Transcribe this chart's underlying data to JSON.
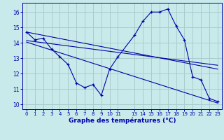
{
  "title": "",
  "xlabel": "Graphe des températures (°C)",
  "bg_color": "#c8eaea",
  "line_color": "#0000aa",
  "grid_color": "#aacccc",
  "ylim": [
    9.7,
    16.6
  ],
  "xlim": [
    -0.5,
    23.5
  ],
  "yticks": [
    10,
    11,
    12,
    13,
    14,
    15,
    16
  ],
  "xticks": [
    0,
    1,
    2,
    3,
    4,
    5,
    6,
    7,
    8,
    9,
    10,
    11,
    13,
    14,
    15,
    16,
    17,
    18,
    19,
    20,
    21,
    22,
    23
  ],
  "xtick_labels": [
    "0",
    "1",
    "2",
    "3",
    "4",
    "5",
    "6",
    "7",
    "8",
    "9",
    "10",
    "11",
    "13",
    "14",
    "15",
    "16",
    "17",
    "18",
    "19",
    "20",
    "21",
    "22",
    "23"
  ],
  "temp_x": [
    0,
    1,
    2,
    3,
    4,
    5,
    6,
    7,
    8,
    9,
    10,
    11,
    13,
    14,
    15,
    16,
    17,
    18,
    19,
    20,
    21,
    22,
    23
  ],
  "temp_y": [
    14.7,
    14.2,
    14.3,
    13.6,
    13.1,
    12.6,
    11.4,
    11.1,
    11.3,
    10.6,
    12.3,
    13.1,
    14.5,
    15.4,
    16.0,
    16.0,
    16.2,
    15.1,
    14.2,
    11.8,
    11.6,
    10.4,
    10.2
  ],
  "trend1_x": [
    0,
    23
  ],
  "trend1_y": [
    14.7,
    12.3
  ],
  "trend2_x": [
    0,
    23
  ],
  "trend2_y": [
    14.15,
    12.55
  ],
  "trend3_x": [
    0,
    23
  ],
  "trend3_y": [
    14.05,
    10.1
  ]
}
